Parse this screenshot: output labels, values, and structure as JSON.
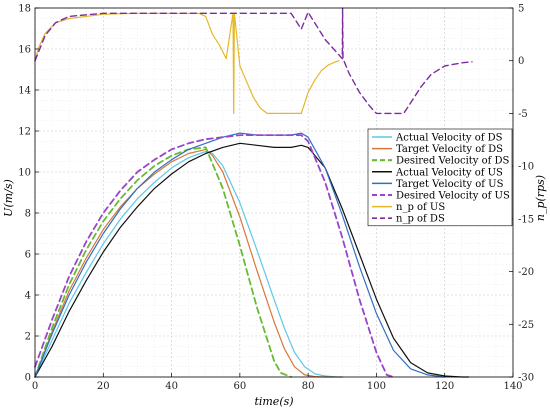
{
  "chart_data": {
    "type": "line",
    "title": "",
    "xlabel": "time(s)",
    "ylabel_left": "U(m/s)",
    "ylabel_right": "n_p(rps)",
    "xlim": [
      0,
      140
    ],
    "ylim_left": [
      0,
      18
    ],
    "ylim_right": [
      -30,
      5
    ],
    "x_ticks": [
      0,
      20,
      40,
      60,
      80,
      100,
      120,
      140
    ],
    "y_ticks_left": [
      0,
      2,
      4,
      6,
      8,
      10,
      12,
      14,
      16,
      18
    ],
    "y_ticks_right": [
      5,
      0,
      -5,
      -10,
      -15,
      -20,
      -25,
      -30
    ],
    "grid": true,
    "legend_position": "right-middle",
    "series": [
      {
        "name": "Actual Velocity of DS",
        "axis": "left",
        "color": "#5bc8e8",
        "dash": "solid",
        "width": 1.2,
        "x": [
          0,
          5,
          10,
          15,
          20,
          25,
          30,
          35,
          40,
          45,
          50,
          52,
          55,
          60,
          65,
          70,
          73,
          76,
          79,
          82,
          85,
          88,
          90
        ],
        "y": [
          0,
          1.8,
          3.6,
          5.1,
          6.5,
          7.7,
          8.7,
          9.5,
          10.2,
          10.7,
          11.0,
          10.9,
          10.3,
          8.5,
          6.2,
          3.8,
          2.4,
          1.2,
          0.5,
          0.15,
          0.05,
          0.01,
          0
        ]
      },
      {
        "name": "Target Velocity of DS",
        "axis": "left",
        "color": "#d9773a",
        "dash": "solid",
        "width": 1.2,
        "x": [
          0,
          5,
          10,
          15,
          20,
          25,
          30,
          35,
          40,
          45,
          50,
          52,
          55,
          60,
          65,
          70,
          73,
          76,
          79,
          82,
          85,
          88,
          90
        ],
        "y": [
          0,
          2.2,
          4.2,
          5.8,
          7.2,
          8.3,
          9.2,
          9.9,
          10.5,
          10.9,
          11.1,
          10.8,
          10.0,
          7.8,
          5.2,
          2.7,
          1.4,
          0.5,
          0.1,
          0.02,
          0,
          0,
          0
        ]
      },
      {
        "name": "Desired Velocity of DS",
        "axis": "left",
        "color": "#66bb33",
        "dash": "dashed",
        "width": 1.8,
        "x": [
          0,
          5,
          10,
          15,
          20,
          25,
          30,
          35,
          40,
          45,
          50,
          55,
          60,
          65,
          70,
          72,
          75
        ],
        "y": [
          0,
          2.4,
          4.5,
          6.2,
          7.6,
          8.7,
          9.6,
          10.3,
          10.8,
          11.1,
          11.2,
          9.2,
          6.4,
          3.4,
          0.8,
          0.2,
          0
        ]
      },
      {
        "name": "Actual Velocity of US",
        "axis": "left",
        "color": "#111111",
        "dash": "solid",
        "width": 1.2,
        "x": [
          0,
          5,
          10,
          15,
          20,
          25,
          30,
          35,
          40,
          45,
          50,
          55,
          60,
          65,
          70,
          75,
          78,
          80,
          85,
          90,
          95,
          100,
          105,
          110,
          115,
          120,
          125,
          127
        ],
        "y": [
          0,
          1.5,
          3.2,
          4.7,
          6.1,
          7.3,
          8.3,
          9.2,
          9.9,
          10.5,
          10.9,
          11.2,
          11.4,
          11.3,
          11.2,
          11.2,
          11.3,
          11.2,
          10.2,
          8.2,
          6.0,
          3.8,
          1.9,
          0.7,
          0.2,
          0.05,
          0,
          0
        ]
      },
      {
        "name": "Target Velocity of US",
        "axis": "left",
        "color": "#2e6fc4",
        "dash": "solid",
        "width": 1.2,
        "x": [
          0,
          5,
          10,
          15,
          20,
          25,
          30,
          35,
          40,
          45,
          50,
          55,
          60,
          65,
          70,
          75,
          78,
          80,
          85,
          90,
          95,
          100,
          105,
          110,
          115,
          120
        ],
        "y": [
          0,
          2.1,
          4.0,
          5.6,
          7.0,
          8.2,
          9.2,
          10.0,
          10.6,
          11.1,
          11.4,
          11.7,
          11.9,
          11.8,
          11.8,
          11.8,
          11.9,
          11.7,
          10.2,
          7.9,
          5.4,
          3.1,
          1.3,
          0.4,
          0.1,
          0
        ]
      },
      {
        "name": "Desired Velocity of US",
        "axis": "left",
        "color": "#9944cc",
        "dash": "dashed",
        "width": 1.8,
        "x": [
          0,
          5,
          10,
          15,
          20,
          25,
          30,
          35,
          40,
          45,
          50,
          55,
          60,
          65,
          70,
          75,
          78,
          80,
          85,
          90,
          95,
          100,
          103,
          105
        ],
        "y": [
          0.5,
          2.8,
          4.9,
          6.6,
          8.0,
          9.1,
          10.0,
          10.6,
          11.1,
          11.4,
          11.6,
          11.7,
          11.8,
          11.8,
          11.8,
          11.8,
          11.8,
          11.5,
          9.5,
          6.8,
          3.8,
          1.2,
          0.1,
          0
        ]
      },
      {
        "name": "n_p of US",
        "axis": "right",
        "color": "#e5b82a",
        "dash": "solid",
        "width": 1.2,
        "x": [
          0,
          1,
          3,
          6,
          10,
          20,
          30,
          40,
          48,
          50,
          52,
          54,
          56,
          58,
          58.2,
          58.4,
          60,
          62,
          64,
          66,
          68,
          69,
          72,
          76,
          78,
          79,
          80,
          82,
          84,
          86,
          88,
          89
        ],
        "y": [
          0,
          1.2,
          2.6,
          3.6,
          4.0,
          4.4,
          4.5,
          4.5,
          4.5,
          4.2,
          2.5,
          1.5,
          0.2,
          4.5,
          -5,
          4.5,
          -0.5,
          -2.0,
          -3.5,
          -4.5,
          -5.0,
          -5.0,
          -5.0,
          -5.0,
          -5.0,
          -4.0,
          -3.0,
          -1.8,
          -0.9,
          -0.4,
          -0.1,
          0
        ]
      },
      {
        "name": "n_p of DS",
        "axis": "right",
        "color": "#7b2d9e",
        "dash": "dashed",
        "width": 1.4,
        "x": [
          0,
          3,
          6,
          10,
          20,
          30,
          40,
          50,
          60,
          70,
          75,
          78,
          80,
          85,
          90,
          90.1,
          90.2,
          92,
          95,
          98,
          100,
          105,
          108,
          110,
          113,
          116,
          120,
          125,
          128
        ],
        "y": [
          0,
          2.4,
          3.6,
          4.2,
          4.5,
          4.5,
          4.5,
          4.5,
          4.5,
          4.5,
          4.5,
          3.0,
          4.6,
          2.0,
          0.2,
          5,
          0.2,
          -1.2,
          -3.0,
          -4.3,
          -5.0,
          -5.0,
          -5.0,
          -4.0,
          -2.5,
          -1.3,
          -0.5,
          -0.2,
          -0.1
        ]
      }
    ]
  }
}
